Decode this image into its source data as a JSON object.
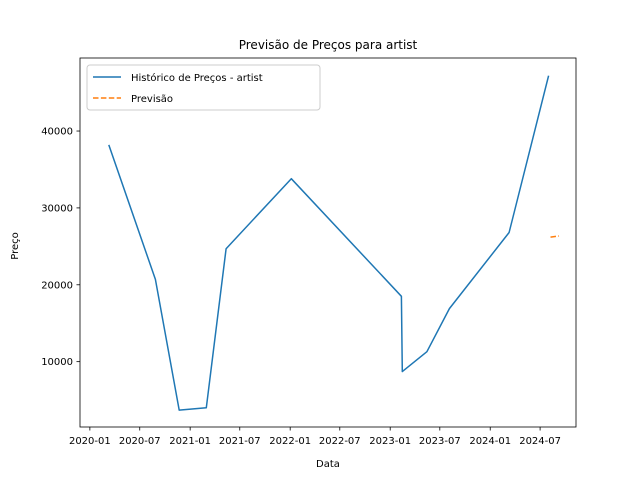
{
  "chart_data": {
    "type": "line",
    "title": "Previsão de Preços para artist",
    "xlabel": "Data",
    "ylabel": "Preço",
    "xlim": [
      "2019-11-26",
      "2024-11-09"
    ],
    "ylim": [
      1500,
      49500
    ],
    "x_ticks": [
      "2020-01",
      "2020-07",
      "2021-01",
      "2021-07",
      "2022-01",
      "2022-07",
      "2023-01",
      "2023-07",
      "2024-01",
      "2024-07"
    ],
    "y_ticks": [
      10000,
      20000,
      30000,
      40000
    ],
    "grid": false,
    "legend_position": "top-left",
    "series": [
      {
        "name": "Histórico de Preços - artist",
        "color": "#1f77b4",
        "style": "solid",
        "points": [
          {
            "x": "2020-03-10",
            "y": 38200
          },
          {
            "x": "2020-08-27",
            "y": 20700
          },
          {
            "x": "2020-11-22",
            "y": 3700
          },
          {
            "x": "2021-03-01",
            "y": 4000
          },
          {
            "x": "2021-05-12",
            "y": 24700
          },
          {
            "x": "2022-01-05",
            "y": 33800
          },
          {
            "x": "2023-02-11",
            "y": 18500
          },
          {
            "x": "2023-02-14",
            "y": 8700
          },
          {
            "x": "2023-05-15",
            "y": 11300
          },
          {
            "x": "2023-08-05",
            "y": 16900
          },
          {
            "x": "2024-03-10",
            "y": 26800
          },
          {
            "x": "2024-08-01",
            "y": 47200
          }
        ]
      },
      {
        "name": "Previsão",
        "color": "#ff7f0e",
        "style": "dashed",
        "points": [
          {
            "x": "2024-08-08",
            "y": 26200
          },
          {
            "x": "2024-09-08",
            "y": 26350
          }
        ]
      }
    ]
  }
}
